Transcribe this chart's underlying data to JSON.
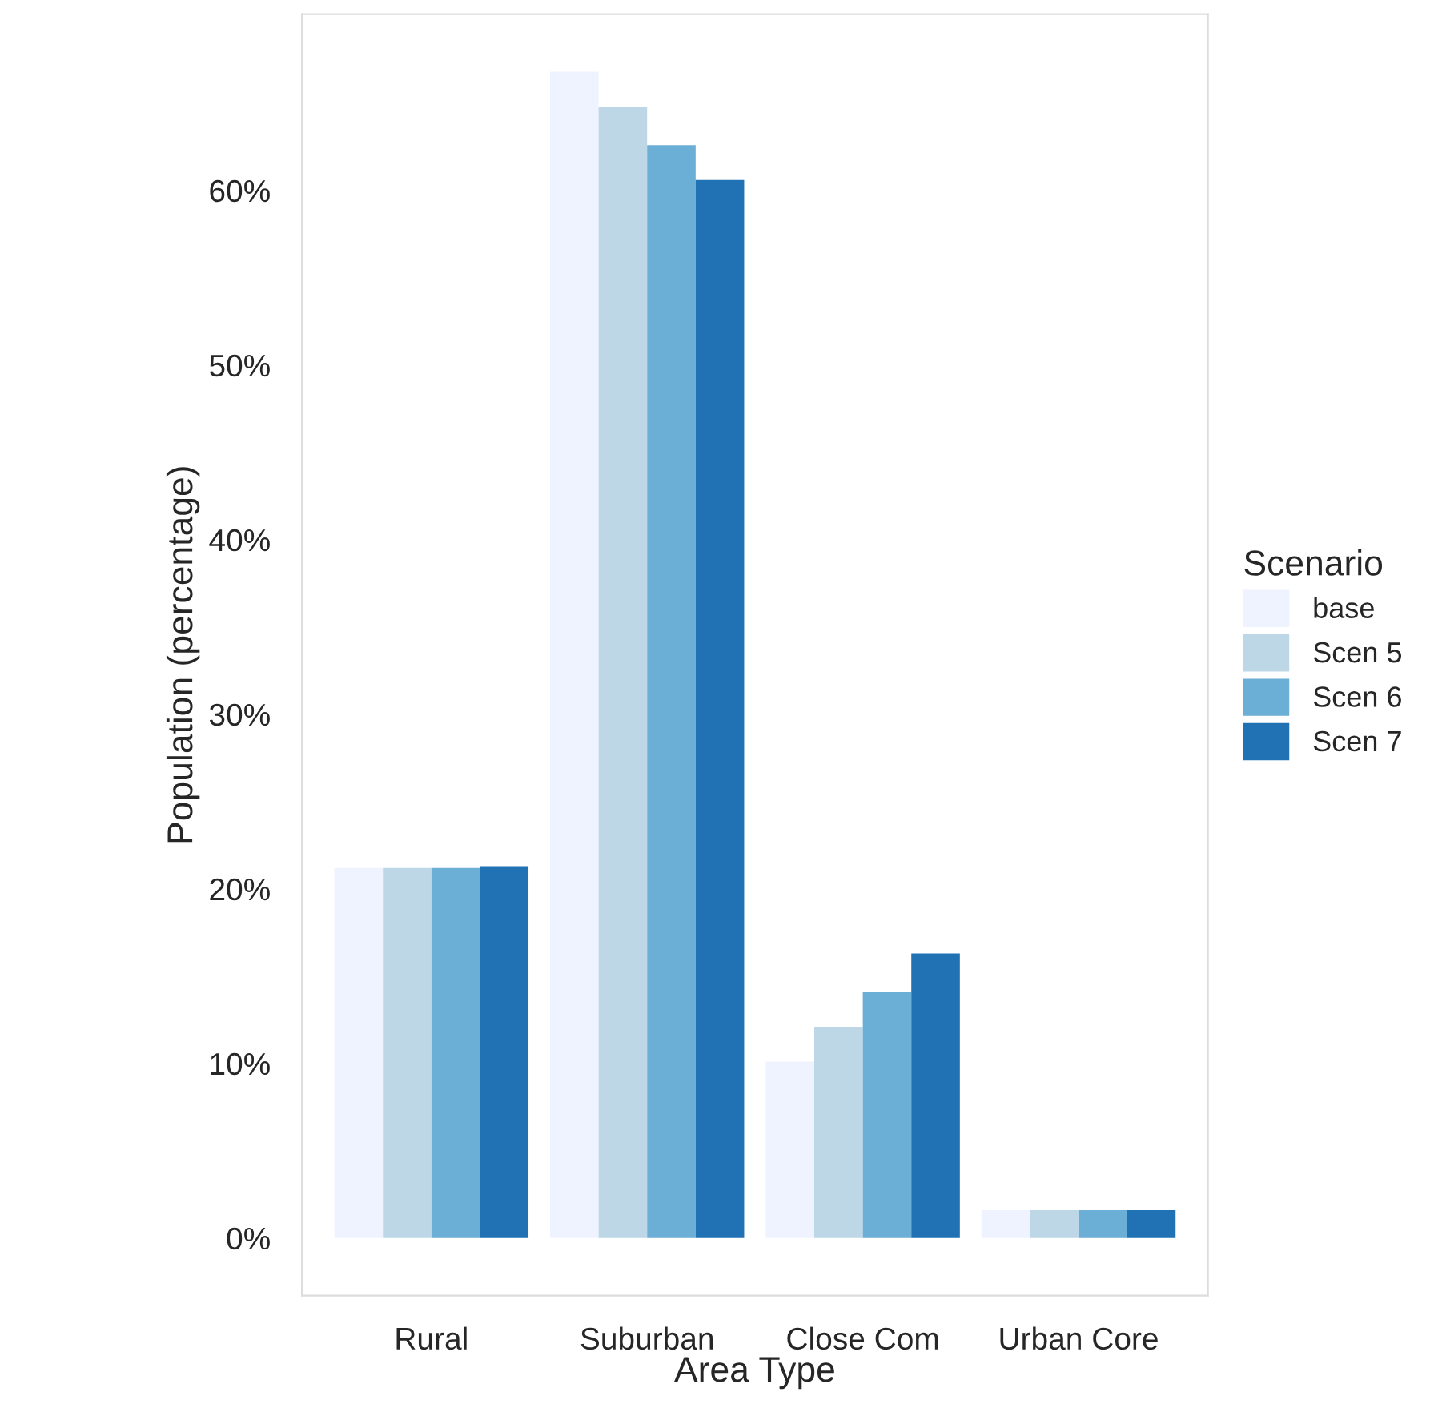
{
  "chart_data": {
    "type": "bar",
    "xlabel": "Area Type",
    "ylabel": "Population (percentage)",
    "legend_title": "Scenario",
    "legend": "right",
    "grid": false,
    "categories": [
      "Rural",
      "Suburban",
      "Close Com",
      "Urban Core"
    ],
    "series": [
      {
        "name": "base",
        "color": "#eff3ff",
        "values": [
          21.2,
          66.8,
          10.1,
          1.6
        ]
      },
      {
        "name": "Scen 5",
        "color": "#bdd7e7",
        "values": [
          21.2,
          64.8,
          12.1,
          1.6
        ]
      },
      {
        "name": "Scen 6",
        "color": "#6baed6",
        "values": [
          21.2,
          62.6,
          14.1,
          1.6
        ]
      },
      {
        "name": "Scen 7",
        "color": "#2171b5",
        "values": [
          21.3,
          60.6,
          16.3,
          1.6
        ]
      }
    ],
    "ylim": [
      -3.3,
      70.1
    ],
    "yticks": [
      {
        "value": 0,
        "label": "0%"
      },
      {
        "value": 10,
        "label": "10%"
      },
      {
        "value": 20,
        "label": "20%"
      },
      {
        "value": 30,
        "label": "30%"
      },
      {
        "value": 40,
        "label": "40%"
      },
      {
        "value": 50,
        "label": "50%"
      },
      {
        "value": 60,
        "label": "60%"
      }
    ]
  }
}
